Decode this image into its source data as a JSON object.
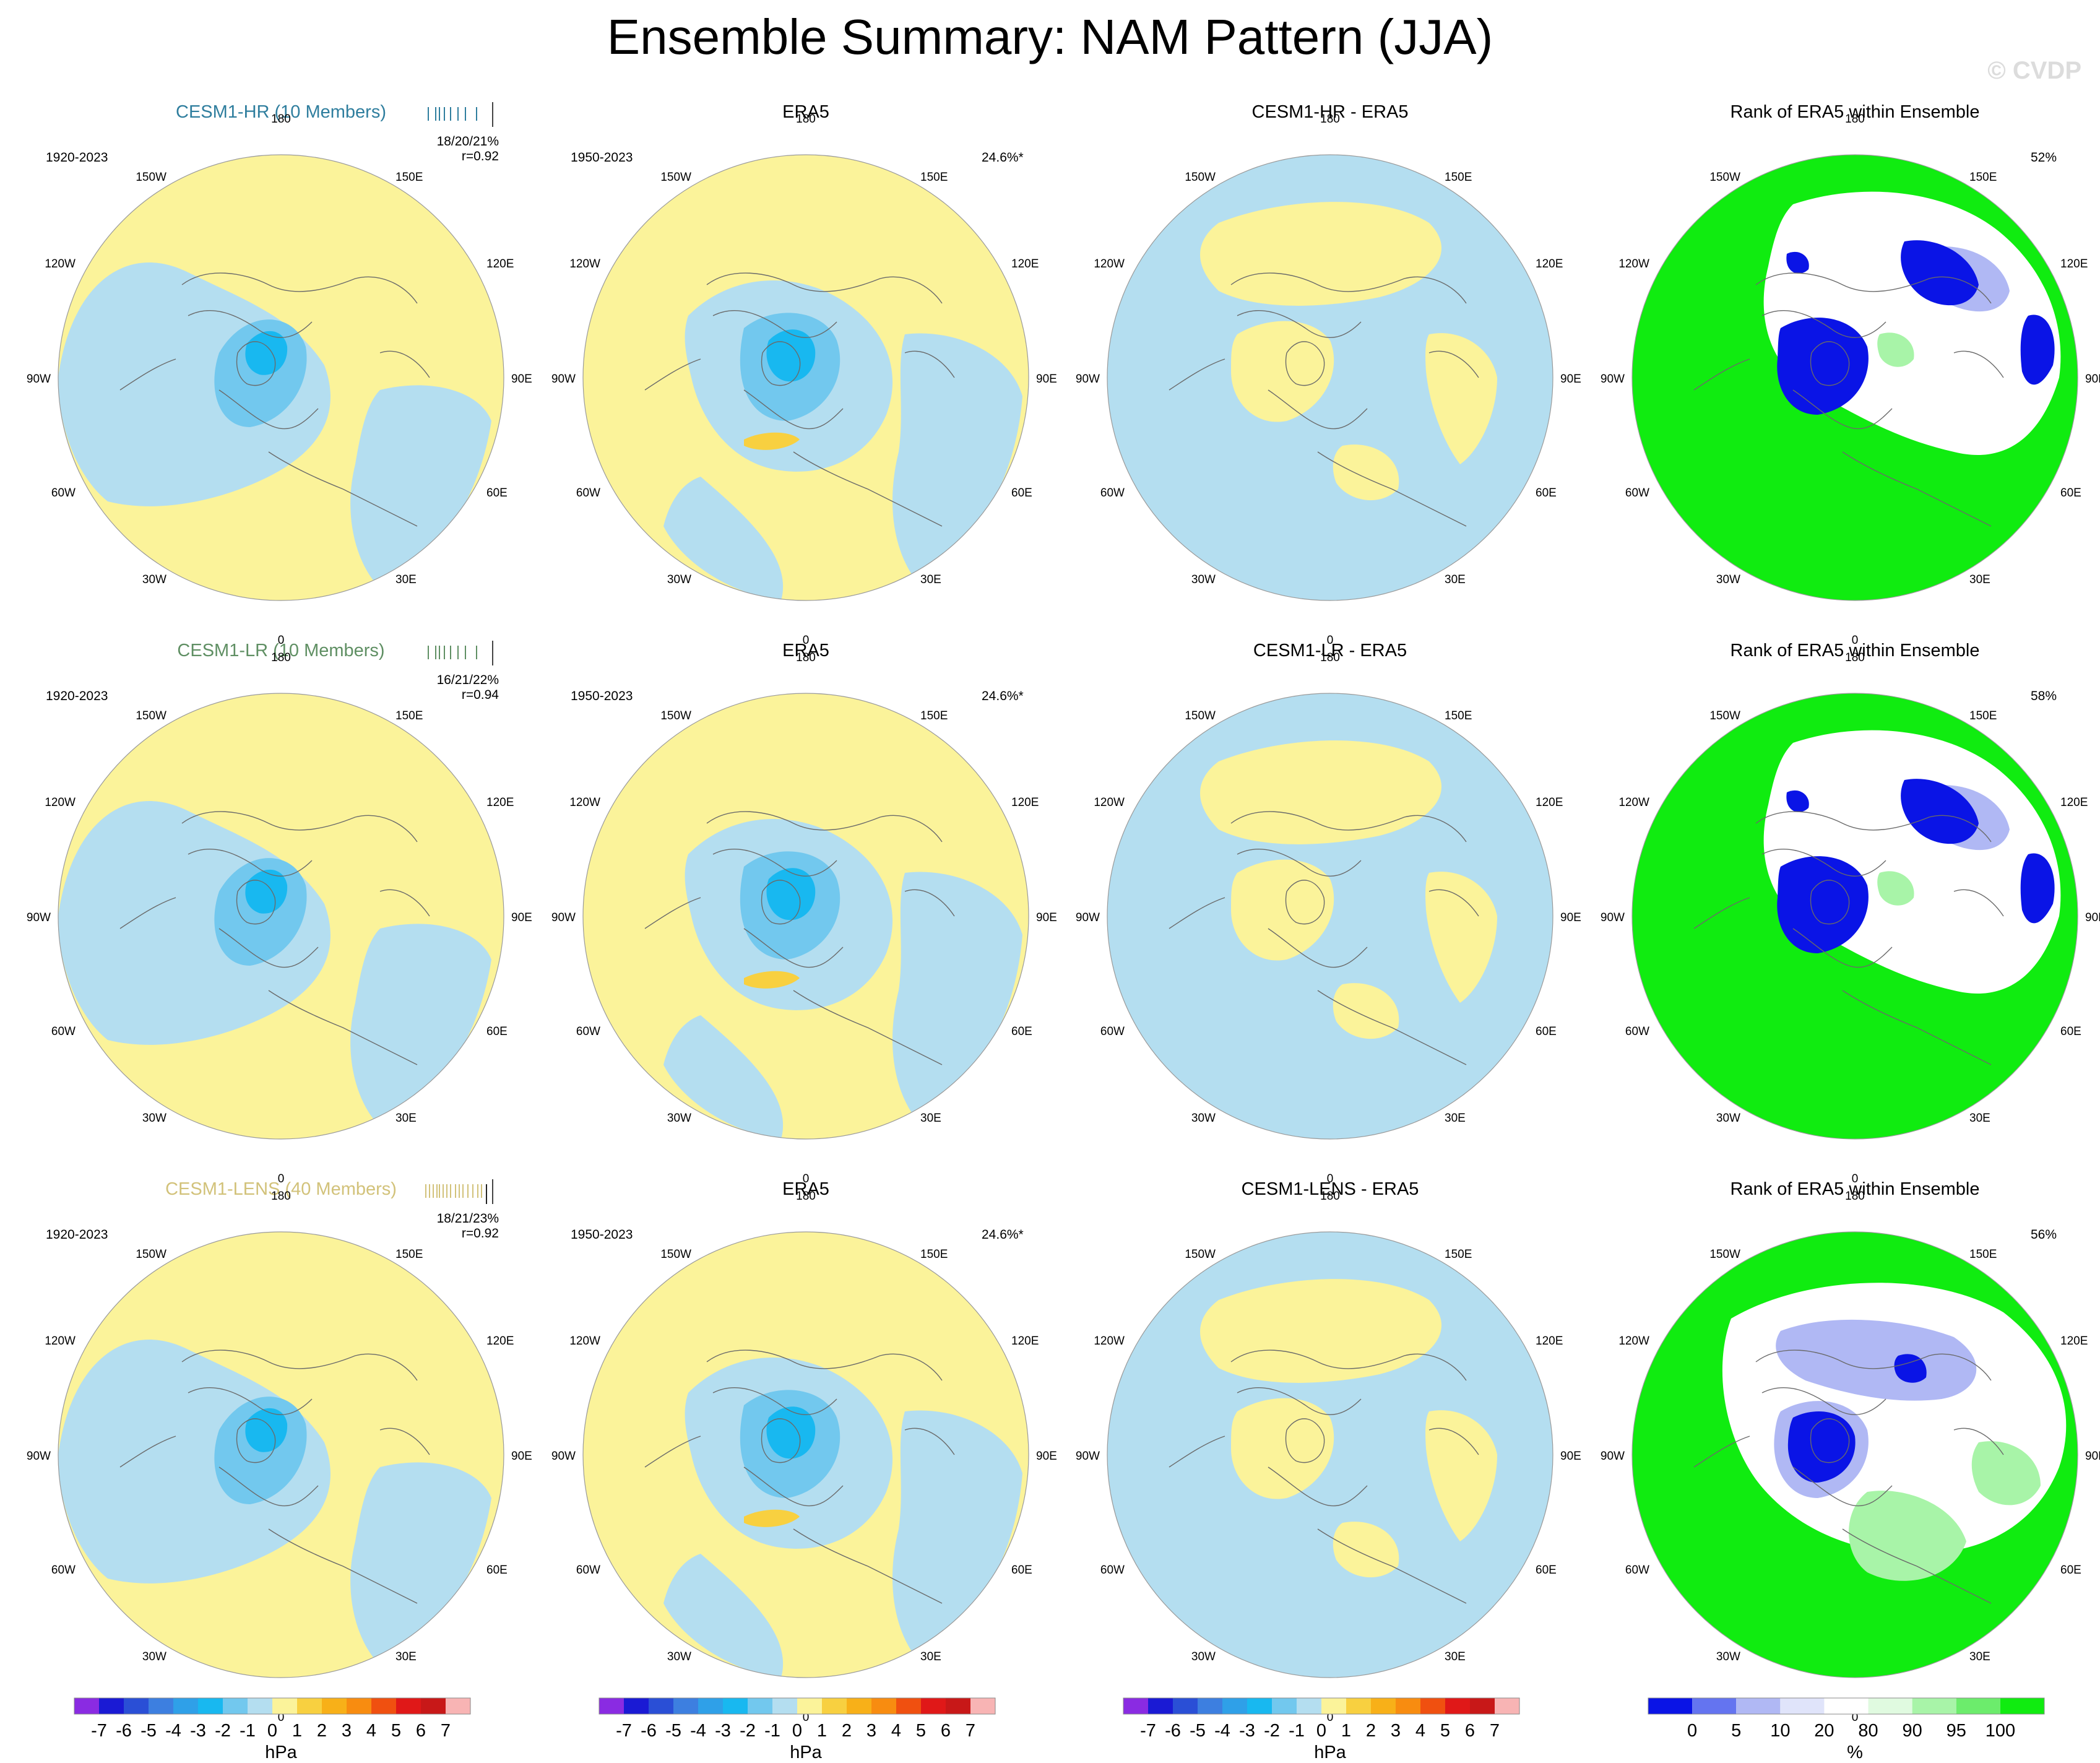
{
  "title": "Ensemble Summary: NAM Pattern (JJA)",
  "watermark": "© CVDP",
  "longitude_labels": {
    "top": "180",
    "bottom": "0",
    "left_upper": "150W",
    "left_mid_upper": "120W",
    "left_mid": "90W",
    "left_mid_lower": "60W",
    "left_lower": "30W",
    "right_upper": "150E",
    "right_mid_upper": "120E",
    "right_mid": "90E",
    "right_mid_lower": "60E",
    "right_lower": "30E"
  },
  "rows": [
    {
      "ensemble": {
        "title": "CESM1-HR (10 Members)",
        "title_color": "#2f7e9e",
        "years": "1920-2023",
        "stats_line1": "18/20/21%",
        "stats_line2": "r=0.92"
      },
      "obs": {
        "title": "ERA5",
        "years": "1950-2023",
        "variance": "24.6%*"
      },
      "diff": {
        "title": "CESM1-HR - ERA5"
      },
      "rank": {
        "title": "Rank of ERA5 within Ensemble",
        "percent": "52%"
      }
    },
    {
      "ensemble": {
        "title": "CESM1-LR (10 Members)",
        "title_color": "#5f8f63",
        "years": "1920-2023",
        "stats_line1": "16/21/22%",
        "stats_line2": "r=0.94"
      },
      "obs": {
        "title": "ERA5",
        "years": "1950-2023",
        "variance": "24.6%*"
      },
      "diff": {
        "title": "CESM1-LR - ERA5"
      },
      "rank": {
        "title": "Rank of ERA5 within Ensemble",
        "percent": "58%"
      }
    },
    {
      "ensemble": {
        "title": "CESM1-LENS (40 Members)",
        "title_color": "#d2c27a",
        "years": "1920-2023",
        "stats_line1": "18/21/23%",
        "stats_line2": "r=0.92"
      },
      "obs": {
        "title": "ERA5",
        "years": "1950-2023",
        "variance": "24.6%*"
      },
      "diff": {
        "title": "CESM1-LENS - ERA5"
      },
      "rank": {
        "title": "Rank of ERA5 within Ensemble",
        "percent": "56%"
      }
    }
  ],
  "colorbar_hpa": {
    "unit": "hPa",
    "ticks": [
      "-7",
      "-6",
      "-5",
      "-4",
      "-3",
      "-2",
      "-1",
      "0",
      "1",
      "2",
      "3",
      "4",
      "5",
      "6",
      "7"
    ],
    "colors": [
      "#8a2be2",
      "#1a1ad4",
      "#2a4fd6",
      "#3d7fe0",
      "#2fa0e8",
      "#18b8f0",
      "#72c8ee",
      "#b4def0",
      "#fbf39a",
      "#f8d040",
      "#f8b018",
      "#f88c10",
      "#f05010",
      "#e01818",
      "#c81818",
      "#f8b4b4"
    ]
  },
  "colorbar_rank": {
    "unit": "%",
    "ticks": [
      "0",
      "5",
      "10",
      "20",
      "80",
      "90",
      "95",
      "100"
    ],
    "colors": [
      "#0a14e6",
      "#6474f0",
      "#b0b8f4",
      "#e0e4fa",
      "#ffffff",
      "#e0fae0",
      "#a8f4a8",
      "#6cec6c",
      "#10ec10"
    ]
  },
  "map_colors": {
    "ocean_pos": "#fbf39a",
    "neg1": "#b4def0",
    "neg2": "#72c8ee",
    "neg3": "#18b8f0",
    "neg4": "#00a6f0",
    "pos2": "#f8d040",
    "rank_green": "#10ec10",
    "rank_blue": "#0a14e6",
    "rank_lightgreen": "#a8f4a8",
    "rank_lightblue": "#b0b8f4"
  }
}
